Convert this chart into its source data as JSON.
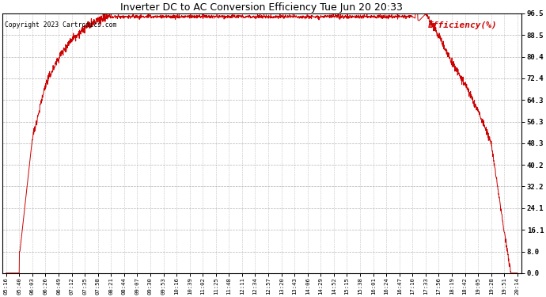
{
  "title": "Inverter DC to AC Conversion Efficiency Tue Jun 20 20:33",
  "copyright": "Copyright 2023 Cartronics.com",
  "legend_label": "Efficiency(%)",
  "line_color": "#cc0000",
  "background_color": "#ffffff",
  "plot_bg_color": "#ffffff",
  "yticks": [
    0.0,
    8.0,
    16.1,
    24.1,
    32.2,
    40.2,
    48.3,
    56.3,
    64.3,
    72.4,
    80.4,
    88.5,
    96.5
  ],
  "xtick_labels": [
    "05:16",
    "05:40",
    "06:03",
    "06:26",
    "06:49",
    "07:12",
    "07:35",
    "07:58",
    "08:21",
    "08:44",
    "09:07",
    "09:30",
    "09:53",
    "10:16",
    "10:39",
    "11:02",
    "11:25",
    "11:48",
    "12:11",
    "12:34",
    "12:57",
    "13:20",
    "13:43",
    "14:06",
    "14:29",
    "14:52",
    "15:15",
    "15:38",
    "16:01",
    "16:24",
    "16:47",
    "17:10",
    "17:33",
    "17:56",
    "18:19",
    "18:42",
    "19:05",
    "19:28",
    "19:51",
    "20:14"
  ],
  "ymin": 0.0,
  "ymax": 96.5,
  "plateau": 95.3,
  "noise_plateau_std": 0.35,
  "noise_rise_std": 0.8
}
